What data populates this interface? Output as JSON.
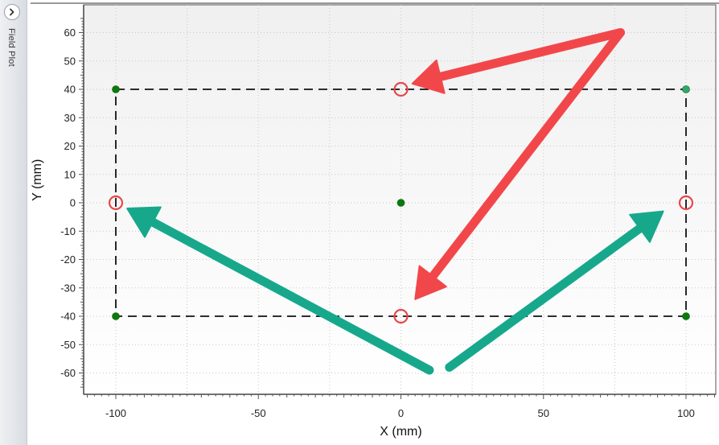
{
  "side_panel": {
    "label": "Field Plot",
    "expand_icon": "chevron-right-icon"
  },
  "colors": {
    "data_point": "#0a7a0a",
    "corner_point_tr": "#2fa86a",
    "dashed_rect": "#111111",
    "highlight_circle": "#e8474a",
    "arrow_red": "#f2474a",
    "arrow_teal": "#17a88c",
    "plot_bg": "#f6f6f6"
  },
  "chart_data": {
    "type": "scatter",
    "title": "",
    "xlabel": "X (mm)",
    "ylabel": "Y (mm)",
    "xlim": [
      -110,
      110
    ],
    "ylim": [
      -67,
      68
    ],
    "x_ticks": [
      -100,
      -50,
      0,
      50,
      100
    ],
    "y_ticks": [
      60,
      50,
      40,
      30,
      20,
      10,
      0,
      -10,
      -20,
      -30,
      -40,
      -50,
      -60
    ],
    "grid": true,
    "series": [
      {
        "points": [
          {
            "x": -100,
            "y": 40
          },
          {
            "x": 100,
            "y": 40
          },
          {
            "x": 0,
            "y": 0
          },
          {
            "x": -100,
            "y": -40
          },
          {
            "x": 100,
            "y": -40
          }
        ]
      }
    ],
    "field_boundary": {
      "x": [
        -100,
        100
      ],
      "y": [
        -40,
        40
      ],
      "style": "dashed"
    },
    "highlighted_points": [
      {
        "x": 0,
        "y": 40
      },
      {
        "x": -100,
        "y": 0
      },
      {
        "x": 100,
        "y": 0
      },
      {
        "x": 0,
        "y": -40
      }
    ],
    "annotation_arrows": [
      {
        "color": "red",
        "from": {
          "x": 77,
          "y": 60
        },
        "to": {
          "x": 4,
          "y": 42
        }
      },
      {
        "color": "red",
        "from": {
          "x": 77,
          "y": 60
        },
        "to": {
          "x": 5,
          "y": -34
        }
      },
      {
        "color": "teal",
        "from": {
          "x": 10,
          "y": -59
        },
        "to": {
          "x": -96,
          "y": -2
        }
      },
      {
        "color": "teal",
        "from": {
          "x": 17,
          "y": -58
        },
        "to": {
          "x": 92,
          "y": -3
        }
      }
    ]
  }
}
